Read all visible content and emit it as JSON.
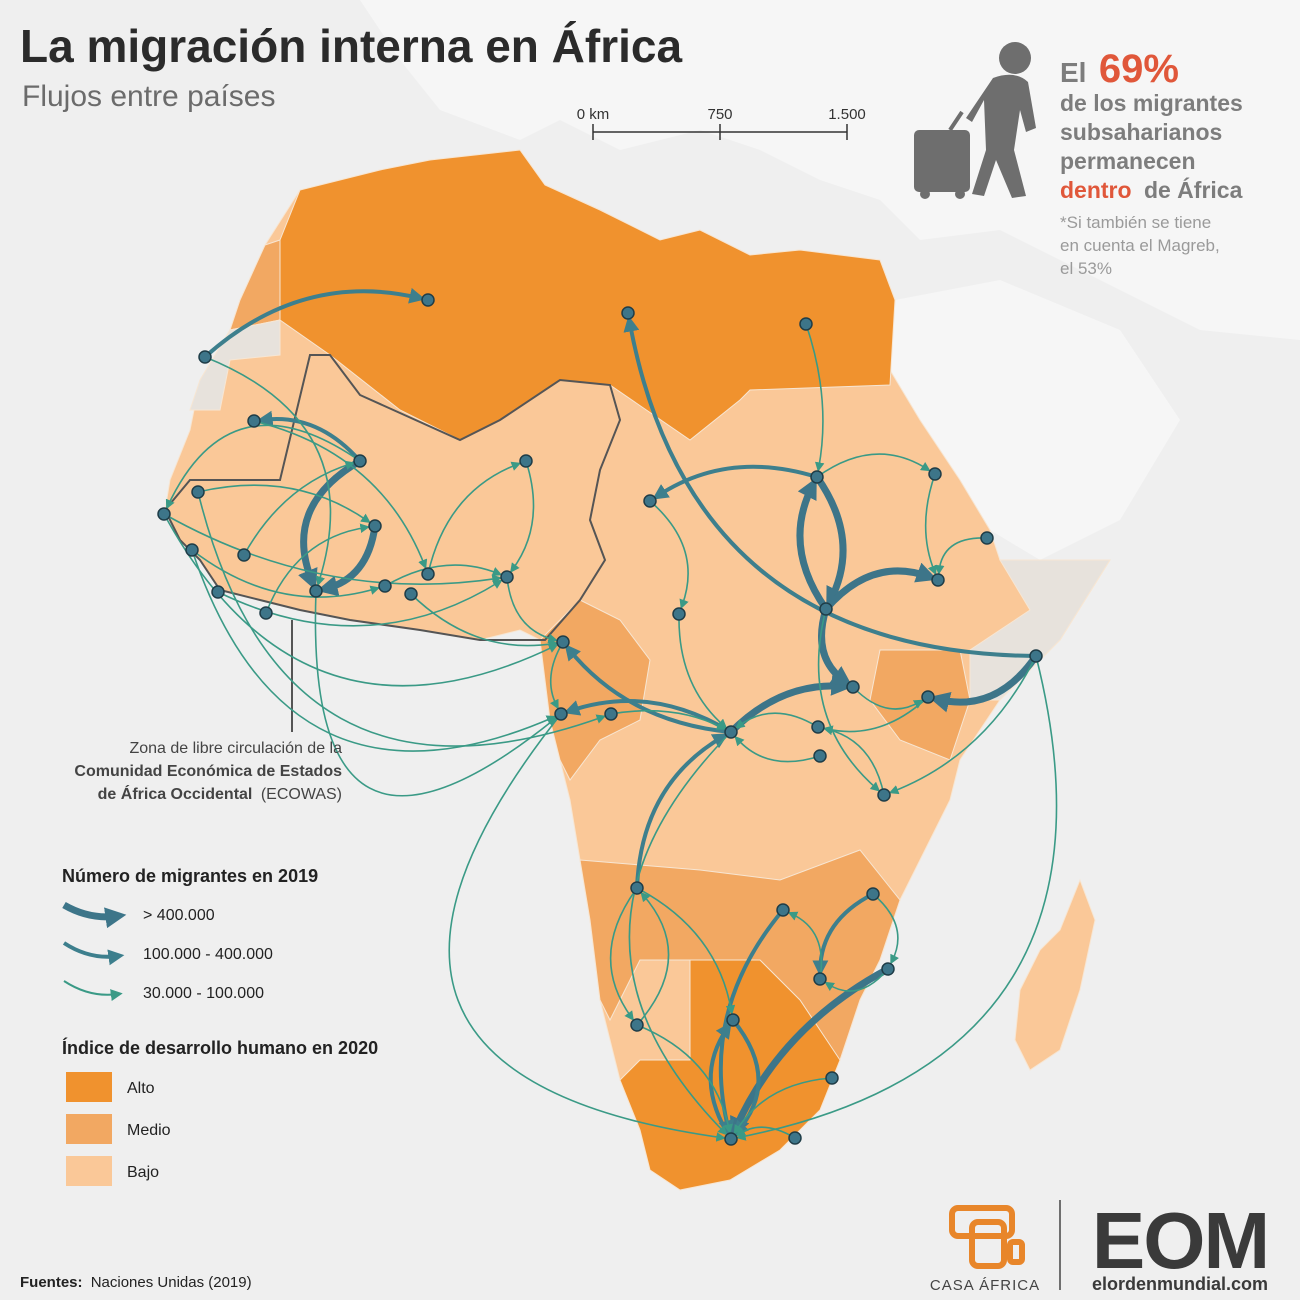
{
  "header": {
    "title": "La migración interna en África",
    "subtitle": "Flujos entre países"
  },
  "scale_bar": {
    "labels": [
      "0 km",
      "750",
      "1.500"
    ]
  },
  "callout": {
    "prefix": "El",
    "percent": "69%",
    "lines": [
      "de los migrantes",
      "subsaharianos",
      "permanecen"
    ],
    "highlight": "dentro",
    "highlight_rest": "de África",
    "note": [
      "*Si también se tiene",
      "en cuenta el Magreb,",
      "el 53%"
    ]
  },
  "annotation": {
    "line1": "Zona de libre circulación de la",
    "bold1": "Comunidad Económica de Estados",
    "bold2": "de África Occidental",
    "rest": "(ECOWAS)"
  },
  "legend_flows": {
    "title": "Número de migrantes en 2019",
    "items": [
      "> 400.000",
      "100.000 - 400.000",
      "30.000 - 100.000"
    ]
  },
  "legend_hdi": {
    "title": "Índice de desarrollo humano en 2020",
    "items": [
      "Alto",
      "Medio",
      "Bajo"
    ]
  },
  "sources": {
    "label": "Fuentes:",
    "text": "Naciones Unidas (2019)"
  },
  "logos": {
    "casa_africa": "CASA ÁFRICA",
    "eom": "EOM",
    "eom_site": "elordenmundial.com"
  }
}
